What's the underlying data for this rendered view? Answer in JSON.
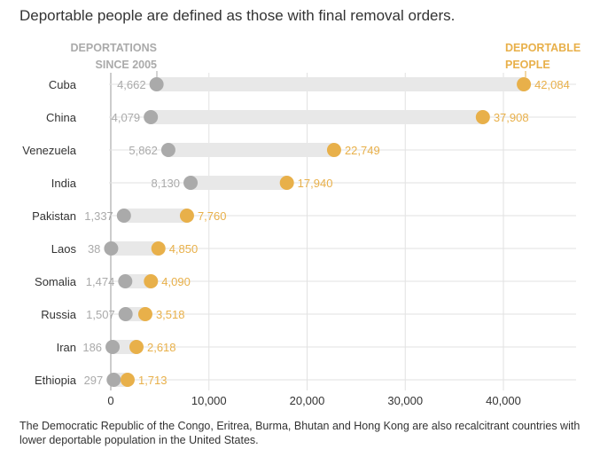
{
  "subtitle": "Deportable people are defined as those with final removal orders.",
  "note": "The Democratic Republic of the Congo, Eritrea, Burma, Bhutan and Hong Kong are also recalcitrant countries with lower deportable population in the United States.",
  "colors": {
    "deportations": "#aaaaaa",
    "deportable": "#e8b04a",
    "range_bar": "#e8e8e8",
    "grid": "#e2e2e2"
  },
  "chart_data": {
    "type": "dumbbell",
    "legend": {
      "deportations": [
        "DEPORTATIONS",
        "SINCE 2005"
      ],
      "deportable": [
        "DEPORTABLE",
        "PEOPLE"
      ]
    },
    "categories": [
      "Cuba",
      "China",
      "Venezuela",
      "India",
      "Pakistan",
      "Laos",
      "Somalia",
      "Russia",
      "Iran",
      "Ethiopia"
    ],
    "series": [
      {
        "name": "DEPORTATIONS SINCE 2005",
        "values": [
          4662,
          4079,
          5862,
          8130,
          1337,
          38,
          1474,
          1507,
          186,
          297
        ],
        "labels": [
          "4,662",
          "4,079",
          "5,862",
          "8,130",
          "1,337",
          "38",
          "1,474",
          "1,507",
          "186",
          "297"
        ]
      },
      {
        "name": "DEPORTABLE PEOPLE",
        "values": [
          42084,
          37908,
          22749,
          17940,
          7760,
          4850,
          4090,
          3518,
          2618,
          1713
        ],
        "labels": [
          "42,084",
          "37,908",
          "22,749",
          "17,940",
          "7,760",
          "4,850",
          "4,090",
          "3,518",
          "2,618",
          "1,713"
        ]
      }
    ],
    "xlim": [
      0,
      47000
    ],
    "xticks": [
      0,
      10000,
      20000,
      30000,
      40000
    ],
    "xtick_labels": [
      "0",
      "10,000",
      "20,000",
      "30,000",
      "40,000"
    ]
  }
}
